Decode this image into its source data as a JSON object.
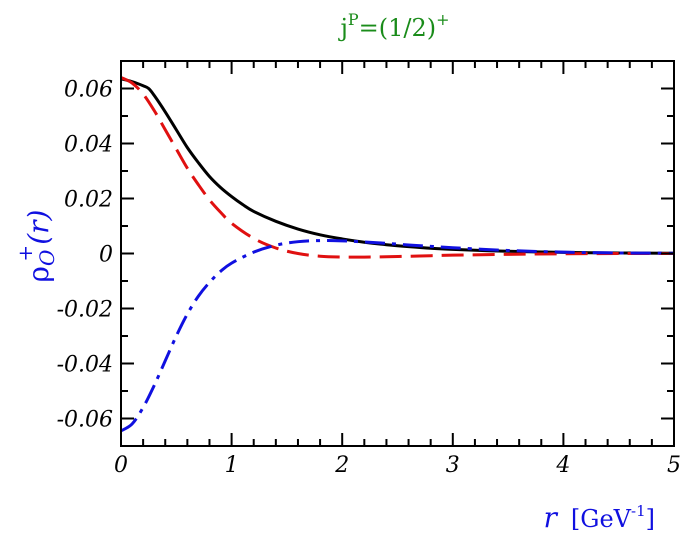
{
  "chart_data": {
    "type": "line",
    "title": {
      "base": "j",
      "sup1": "P",
      "mid": "=(1/2)",
      "sup2": "+",
      "color": "#1a8c1a"
    },
    "ylabel": {
      "rho": "ρ",
      "sub": "O",
      "sup": "+",
      "arg": "(r)",
      "color": "#1010e0"
    },
    "xlabel": {
      "var": "r",
      "unit_pre": "[GeV",
      "unit_sup": "-1",
      "unit_post": "]",
      "color": "#1010e0"
    },
    "xlim": [
      0,
      5
    ],
    "ylim": [
      -0.07,
      0.07
    ],
    "xticks": [
      0,
      1,
      2,
      3,
      4,
      5
    ],
    "xtick_labels": [
      "0",
      "1",
      "2",
      "3",
      "4",
      "5"
    ],
    "yticks": [
      -0.06,
      -0.04,
      -0.02,
      0,
      0.02,
      0.04,
      0.06
    ],
    "ytick_labels": [
      "-0.06",
      "-0.04",
      "-0.02",
      "0",
      "0.02",
      "0.04",
      "0.06"
    ],
    "grid": false,
    "series": [
      {
        "color": "#000000",
        "style": "solid",
        "x": [
          0,
          0.1,
          0.2,
          0.25,
          0.3,
          0.4,
          0.5,
          0.6,
          0.7,
          0.8,
          0.9,
          1.0,
          1.1,
          1.2,
          1.4,
          1.6,
          1.8,
          2.0,
          2.2,
          2.4,
          2.6,
          2.8,
          3.0,
          3.5,
          4.0,
          4.5,
          5.0
        ],
        "y": [
          0.0635,
          0.0625,
          0.061,
          0.06,
          0.0575,
          0.0515,
          0.045,
          0.0385,
          0.033,
          0.028,
          0.024,
          0.0207,
          0.0178,
          0.0153,
          0.0117,
          0.0089,
          0.0068,
          0.0053,
          0.0041,
          0.0032,
          0.0025,
          0.0019,
          0.0015,
          0.0008,
          0.0004,
          0.0002,
          0.0001
        ]
      },
      {
        "color": "#e01010",
        "style": "dashed",
        "x": [
          0,
          0.1,
          0.2,
          0.3,
          0.4,
          0.5,
          0.6,
          0.7,
          0.8,
          0.9,
          1.0,
          1.2,
          1.4,
          1.6,
          1.8,
          2.0,
          2.2,
          2.4,
          2.6,
          2.8,
          3.0,
          3.5,
          4.0,
          4.5,
          5.0
        ],
        "y": [
          0.064,
          0.062,
          0.058,
          0.052,
          0.045,
          0.038,
          0.031,
          0.025,
          0.0195,
          0.015,
          0.011,
          0.0055,
          0.002,
          0.0,
          -0.001,
          -0.0013,
          -0.0013,
          -0.0012,
          -0.001,
          -0.0008,
          -0.0006,
          -0.0003,
          -0.0001,
          0.0,
          0.0
        ]
      },
      {
        "color": "#1010e0",
        "style": "dashdot",
        "x": [
          0,
          0.1,
          0.2,
          0.3,
          0.4,
          0.5,
          0.6,
          0.7,
          0.8,
          0.9,
          1.0,
          1.2,
          1.4,
          1.6,
          1.8,
          2.0,
          2.2,
          2.4,
          2.6,
          2.8,
          3.0,
          3.5,
          4.0,
          4.5,
          5.0
        ],
        "y": [
          -0.0645,
          -0.062,
          -0.056,
          -0.048,
          -0.039,
          -0.03,
          -0.022,
          -0.0155,
          -0.0105,
          -0.0065,
          -0.0035,
          0.0005,
          0.003,
          0.0043,
          0.0047,
          0.0046,
          0.0042,
          0.0037,
          0.0031,
          0.0026,
          0.0021,
          0.0011,
          0.0005,
          0.0002,
          0.0001
        ]
      }
    ]
  }
}
